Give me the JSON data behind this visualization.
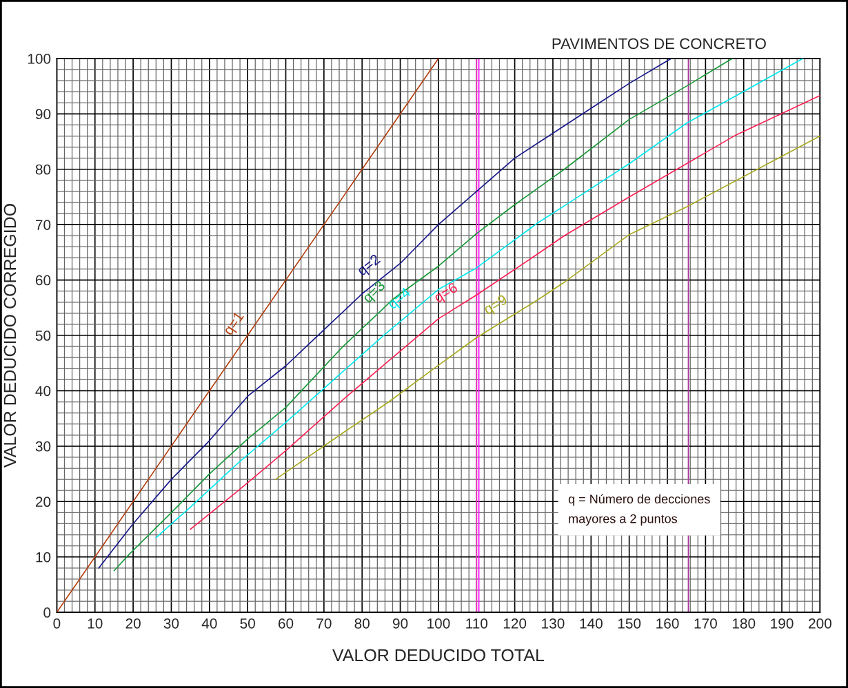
{
  "chart_data": {
    "type": "line",
    "title": "PAVIMENTOS DE CONCRETO",
    "xlabel": "VALOR DEDUCIDO TOTAL",
    "ylabel": "VALOR DEDUCIDO CORREGIDO",
    "xlim": [
      0,
      200
    ],
    "ylim": [
      0,
      100
    ],
    "xticks": [
      0,
      10,
      20,
      30,
      40,
      50,
      60,
      70,
      80,
      90,
      100,
      110,
      120,
      130,
      140,
      150,
      160,
      170,
      180,
      190,
      200
    ],
    "yticks": [
      0,
      10,
      20,
      30,
      40,
      50,
      60,
      70,
      80,
      90,
      100
    ],
    "grid": true,
    "marker": "none",
    "line_style": "solid",
    "series": [
      {
        "name": "q=1",
        "color": "#b5400f",
        "x": [
          0,
          100
        ],
        "values": [
          0,
          100
        ]
      },
      {
        "name": "q=2",
        "color": "#1a1a8c",
        "x": [
          11,
          20,
          30,
          40,
          50,
          60,
          70,
          80,
          90,
          100,
          110,
          120,
          130,
          140,
          150,
          161
        ],
        "values": [
          8,
          16,
          24,
          31,
          39,
          44.5,
          51,
          57.5,
          63,
          70,
          76,
          82,
          86.5,
          91,
          95.5,
          100
        ]
      },
      {
        "name": "q=3",
        "color": "#1a9a3a",
        "x": [
          15,
          19,
          30,
          40,
          50,
          60,
          75,
          85,
          88,
          100,
          110,
          120,
          133,
          150,
          165,
          177
        ],
        "values": [
          7.5,
          10.5,
          18,
          25,
          31.3,
          37,
          48,
          54.5,
          56.5,
          62.5,
          68.4,
          73.6,
          80,
          89,
          95,
          100
        ]
      },
      {
        "name": "q=4",
        "color": "#00e8f0",
        "x": [
          26,
          35,
          47.6,
          60,
          75,
          86,
          100,
          110,
          126,
          133,
          150,
          165,
          195.5
        ],
        "values": [
          13.5,
          19,
          27,
          34.3,
          43.5,
          50.2,
          58.3,
          62.2,
          70.3,
          73.4,
          81,
          88.3,
          100
        ]
      },
      {
        "name": "q=6",
        "color": "#ff2255",
        "x": [
          35,
          47.6,
          60,
          75,
          88,
          100,
          110,
          126,
          133,
          150,
          165,
          178,
          200
        ],
        "values": [
          15,
          22,
          29.2,
          38.4,
          46,
          53,
          57.3,
          64.7,
          68,
          75,
          81,
          86.2,
          93.3
        ]
      },
      {
        "name": "q=9",
        "color": "#aaaa22",
        "x": [
          57.3,
          75,
          87,
          100,
          110,
          126,
          133,
          150,
          165,
          200
        ],
        "values": [
          24,
          32.4,
          38,
          44.6,
          49.6,
          56.4,
          59.6,
          68.2,
          73.2,
          86
        ]
      }
    ],
    "ref_lines": [
      {
        "axis": "x",
        "value": 110,
        "color": "#ff33cc"
      },
      {
        "axis": "x",
        "value": 110.6,
        "color": "#ff00ff"
      },
      {
        "axis": "x",
        "value": 165.5,
        "color": "#aa3399"
      }
    ],
    "annotations": [
      "q = Número de decciones\nmayores a 2 puntos"
    ]
  }
}
